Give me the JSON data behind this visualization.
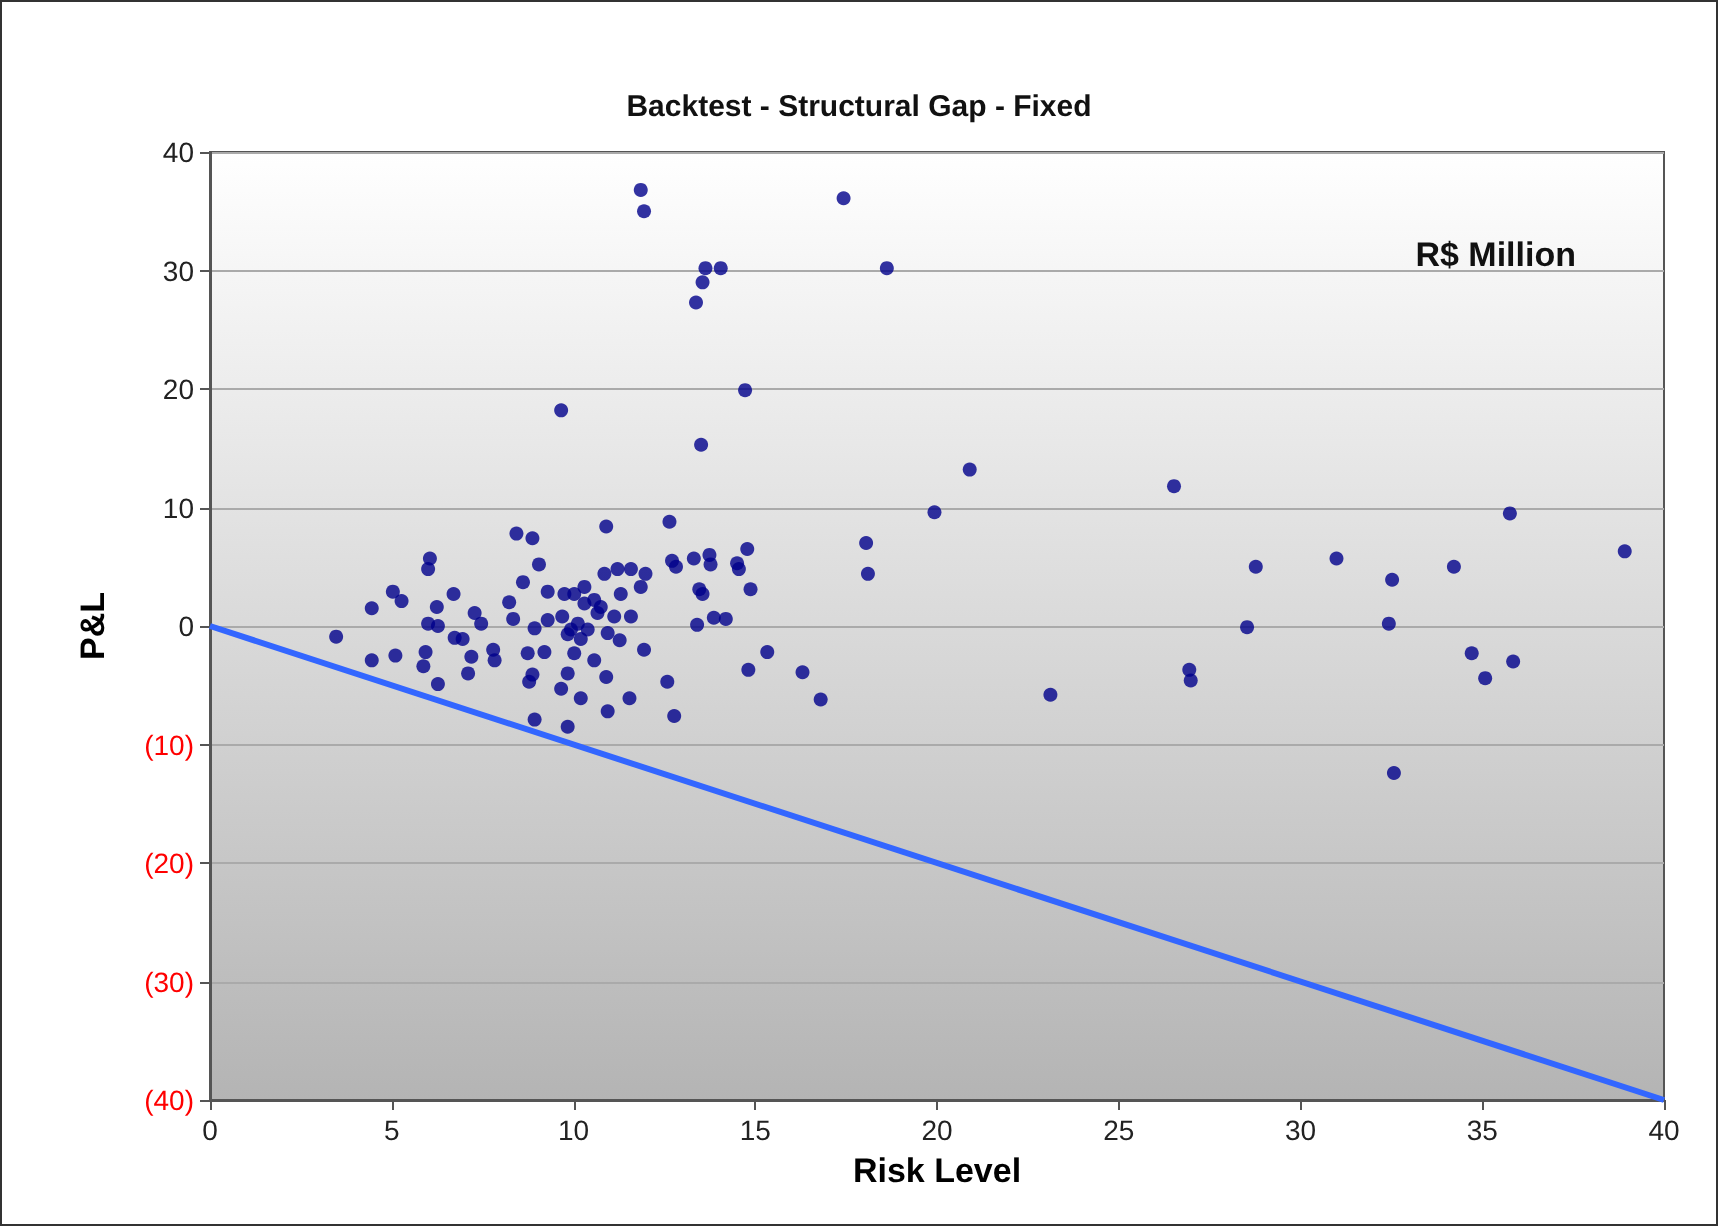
{
  "chart_data": {
    "type": "scatter",
    "title": "Backtest - Structural Gap - Fixed",
    "xlabel": "Risk Level",
    "ylabel": "P&L",
    "annotations": [
      "R$ Million"
    ],
    "xlim": [
      0,
      40
    ],
    "xticks": [
      0,
      5,
      10,
      15,
      20,
      25,
      30,
      35,
      40
    ],
    "ylim": [
      -40,
      40
    ],
    "yticks": [
      {
        "value": -40,
        "label": "(40)"
      },
      {
        "value": -30,
        "label": "(30)"
      },
      {
        "value": -20,
        "label": "(20)"
      },
      {
        "value": -10,
        "label": "(10)"
      },
      0,
      10,
      20,
      30,
      40
    ],
    "grid": "y",
    "marker": "circle",
    "series": [
      {
        "color": "#00008b",
        "x": [
          3.47,
          4.45,
          4.45,
          5.03,
          5.27,
          5.1,
          6.05,
          6.0,
          6.24,
          6.0,
          6.27,
          5.93,
          5.87,
          6.27,
          6.7,
          6.73,
          6.95,
          7.28,
          7.46,
          7.19,
          7.1,
          7.79,
          7.83,
          8.43,
          8.87,
          9.05,
          8.61,
          8.23,
          8.34,
          9.29,
          9.29,
          8.93,
          8.74,
          9.2,
          8.87,
          8.78,
          8.93,
          9.75,
          10.02,
          10.3,
          9.69,
          10.12,
          9.84,
          10.2,
          10.02,
          9.84,
          9.66,
          10.2,
          9.84,
          10.57,
          10.66,
          10.85,
          10.9,
          10.94,
          10.57,
          10.9,
          10.94,
          11.21,
          11.3,
          11.12,
          11.27,
          11.58,
          11.58,
          11.85,
          11.98,
          11.94,
          11.54,
          12.64,
          12.71,
          12.82,
          13.31,
          13.74,
          13.77,
          13.46,
          13.55,
          13.4,
          13.86,
          14.19,
          14.5,
          14.55,
          14.78,
          14.87,
          15.33,
          14.81,
          12.58,
          12.77,
          9.93,
          10.39,
          10.75,
          10.3,
          11.85,
          11.94,
          17.43,
          13.63,
          14.05,
          13.55,
          13.37,
          18.62,
          14.72,
          9.66,
          13.51,
          20.9,
          19.93,
          26.52,
          35.76,
          38.92,
          28.77,
          30.99,
          34.22,
          32.52,
          28.53,
          32.43,
          23.12,
          26.94,
          26.98,
          34.71,
          35.08,
          35.85,
          32.57,
          18.05,
          18.1,
          16.3,
          16.8
        ],
        "values": [
          -0.9,
          1.5,
          -2.9,
          2.9,
          2.1,
          -2.5,
          5.7,
          4.8,
          1.6,
          0.2,
          0,
          -2.2,
          -3.4,
          -4.9,
          2.7,
          -1.0,
          -1.1,
          1.1,
          0.2,
          -2.6,
          -4.0,
          -2.0,
          -2.9,
          7.8,
          7.4,
          5.2,
          3.7,
          2.0,
          0.6,
          2.9,
          0.5,
          -0.2,
          -2.3,
          -2.2,
          -4.1,
          -4.7,
          -7.9,
          2.7,
          2.7,
          3.3,
          0.8,
          0.2,
          -0.7,
          -1.1,
          -2.3,
          -4.0,
          -5.3,
          -6.1,
          -8.5,
          2.2,
          1.1,
          4.4,
          8.4,
          -0.6,
          -2.9,
          -4.3,
          -7.2,
          4.8,
          2.7,
          0.8,
          -1.2,
          4.8,
          0.8,
          3.3,
          4.4,
          -2.0,
          -6.1,
          8.8,
          5.5,
          5.0,
          5.7,
          6.0,
          5.2,
          3.1,
          2.7,
          0.1,
          0.7,
          0.6,
          5.3,
          4.8,
          6.5,
          3.1,
          -2.2,
          -3.7,
          -4.7,
          -7.6,
          -0.3,
          -0.3,
          1.6,
          1.9,
          36.8,
          35.0,
          36.1,
          30.2,
          30.2,
          29.0,
          27.3,
          30.2,
          19.9,
          18.2,
          15.3,
          13.2,
          9.6,
          11.8,
          9.5,
          6.3,
          5.0,
          5.7,
          5.0,
          3.9,
          -0.1,
          0.2,
          -5.8,
          -3.7,
          -4.6,
          -2.3,
          -4.4,
          -3.0,
          -12.4,
          7.0,
          4.4,
          -3.9,
          -6.2
        ]
      },
      {
        "type": "line",
        "color": "#3366ff",
        "x": [
          0,
          40
        ],
        "values": [
          0,
          -40
        ],
        "marker": "none",
        "line_style": "solid"
      }
    ]
  }
}
